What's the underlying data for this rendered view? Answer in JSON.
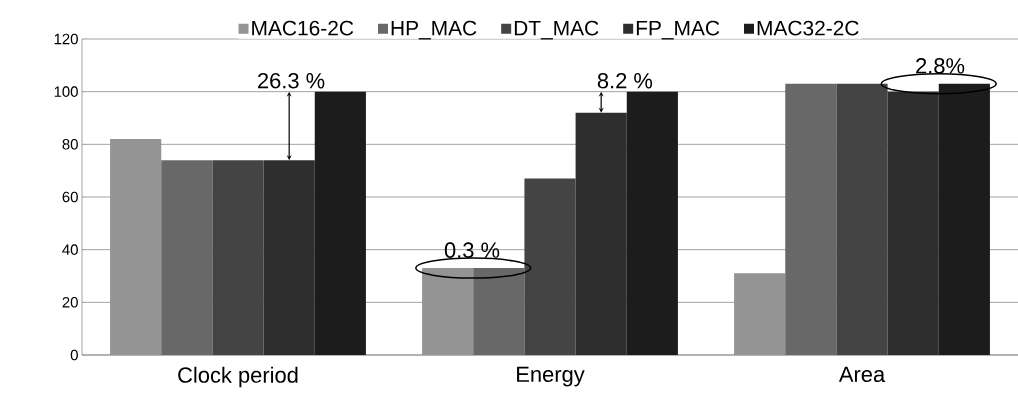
{
  "chart_data": {
    "type": "bar",
    "categories": [
      "Clock period",
      "Energy",
      "Area"
    ],
    "series": [
      {
        "name": "MAC16-2C",
        "color": "#949494",
        "values": [
          82,
          33,
          31
        ]
      },
      {
        "name": "HP_MAC",
        "color": "#686868",
        "values": [
          74,
          33,
          103
        ]
      },
      {
        "name": "DT_MAC",
        "color": "#444444",
        "values": [
          74,
          67,
          103
        ]
      },
      {
        "name": "FP_MAC",
        "color": "#2e2e2e",
        "values": [
          74,
          92,
          100
        ]
      },
      {
        "name": "MAC32-2C",
        "color": "#1c1c1c",
        "values": [
          100,
          100,
          103
        ]
      }
    ],
    "ylim": [
      0,
      120
    ],
    "yticks": [
      0,
      20,
      40,
      60,
      80,
      100,
      120
    ],
    "grid": "y",
    "legend": "top",
    "annotations": [
      {
        "text": "26.3 %",
        "y": 74
      },
      "0.3 %",
      "8.2 %",
      "2.8%"
    ]
  }
}
